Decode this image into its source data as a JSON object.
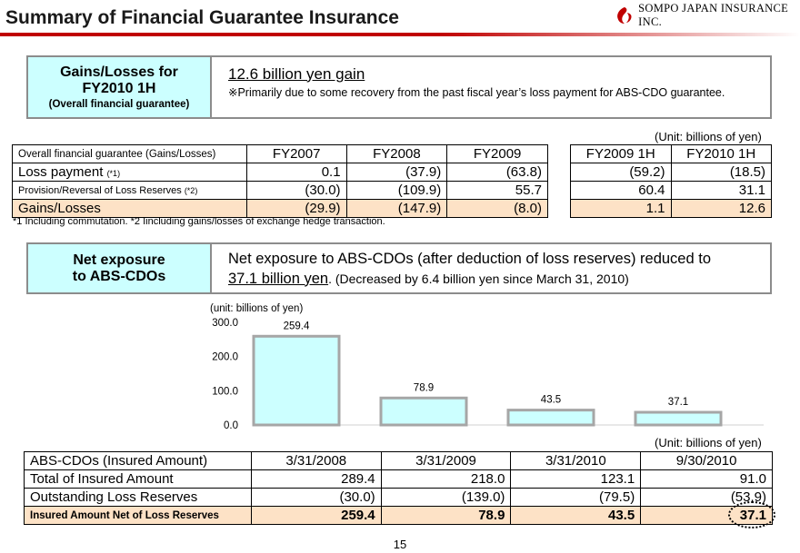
{
  "header": {
    "title": "Summary of Financial Guarantee Insurance",
    "logo_text": "SOMPO JAPAN INSURANCE INC.",
    "logo_icon": "sompo-flame-logo-icon",
    "accent_color": "#c00000"
  },
  "gains_box": {
    "head_line1": "Gains/Losses for",
    "head_line2": "FY2010 1H",
    "head_line3": "(Overall financial guarantee)",
    "headline": "12.6 billion yen gain",
    "detail": "※Primarily due to some recovery from the past fiscal year’s loss payment for ABS-CDO guarantee."
  },
  "gains_table": {
    "unit": "(Unit: billions of yen)",
    "corner_label": "Overall financial guarantee (Gains/Losses)",
    "fy_headers": [
      "FY2007",
      "FY2008",
      "FY2009"
    ],
    "half_headers": [
      "FY2009 1H",
      "FY2010 1H"
    ],
    "rows": [
      {
        "label": "Loss payment",
        "note": "(*1)",
        "fy": [
          "0.1",
          "(37.9)",
          "(63.8)"
        ],
        "half": [
          "(59.2)",
          "(18.5)"
        ]
      },
      {
        "label": "Provision/Reversal of Loss Reserves",
        "note": "(*2)",
        "fy": [
          "(30.0)",
          "(109.9)",
          "55.7"
        ],
        "half": [
          "60.4",
          "31.1"
        ]
      },
      {
        "label": "Gains/Losses",
        "note": "",
        "fy": [
          "(29.9)",
          "(147.9)",
          "(8.0)"
        ],
        "half": [
          "1.1",
          "12.6"
        ]
      }
    ],
    "footnote": "*1  Including commutation.    *2  Iincluding gains/losses of exchange hedge transaction.",
    "highlight_color": "#fde2c6"
  },
  "exposure_box": {
    "head_line1": "Net exposure",
    "head_line2": "to ABS-CDOs",
    "text_line1": "Net exposure to ABS-CDOs (after deduction of loss reserves) reduced to",
    "text_amount": "37.1 billion yen",
    "text_rest": ". (Decreased by 6.4 billion yen since March 31, 2010)"
  },
  "chart_data": {
    "type": "bar",
    "unit_label": "(unit: billions of yen)",
    "categories": [
      "3/31/2008",
      "3/31/2009",
      "3/31/2010",
      "9/30/2010"
    ],
    "values": [
      259.4,
      78.9,
      43.5,
      37.1
    ],
    "value_labels": [
      "259.4",
      "78.9",
      "43.5",
      "37.1"
    ],
    "y_ticks": [
      "0.0",
      "100.0",
      "200.0",
      "300.0"
    ],
    "ylim": [
      0,
      300
    ],
    "bar_color": "#ccffff",
    "bar_border": "#a6a6a6"
  },
  "exposure_table": {
    "unit": "(Unit: billions of yen)",
    "corner_label": "ABS-CDOs (Insured Amount)",
    "dates": [
      "3/31/2008",
      "3/31/2009",
      "3/31/2010",
      "9/30/2010"
    ],
    "rows": [
      {
        "label": "Total of Insured Amount",
        "values": [
          "289.4",
          "218.0",
          "123.1",
          "91.0"
        ]
      },
      {
        "label": "Outstanding Loss Reserves",
        "values": [
          "(30.0)",
          "(139.0)",
          "(79.5)",
          "(53.9)"
        ]
      },
      {
        "label": "Insured Amount Net of Loss Reserves",
        "values": [
          "259.4",
          "78.9",
          "43.5",
          "37.1"
        ]
      }
    ]
  },
  "page_number": "15"
}
